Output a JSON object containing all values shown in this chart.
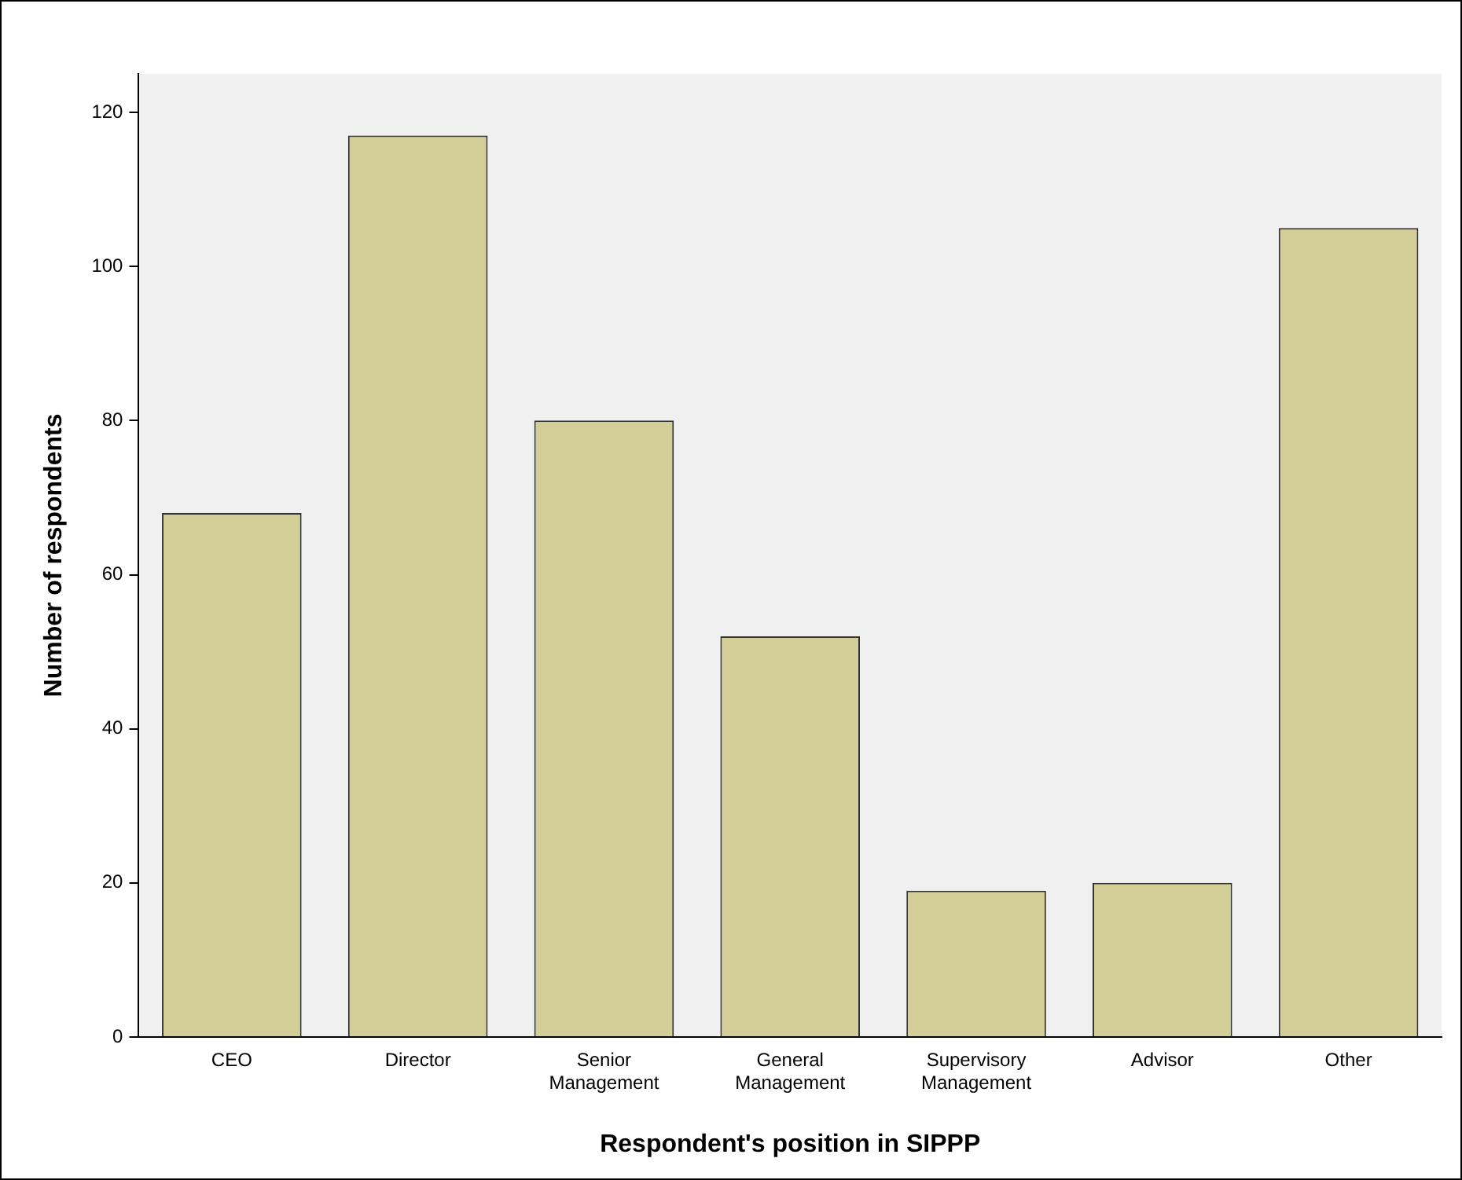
{
  "chart_data": {
    "type": "bar",
    "xlabel": "Respondent's position in SIPPP",
    "ylabel": "Number of respondents",
    "categories": [
      "CEO",
      "Director",
      "Senior Management",
      "General Management",
      "Supervisory Management",
      "Advisor",
      "Other"
    ],
    "values": [
      68,
      117,
      80,
      52,
      19,
      20,
      105
    ],
    "color": "#d3ce97",
    "ylim": [
      0,
      125
    ],
    "yticks": [
      0,
      20,
      40,
      60,
      80,
      100,
      120
    ],
    "grid": false,
    "legend": false
  }
}
